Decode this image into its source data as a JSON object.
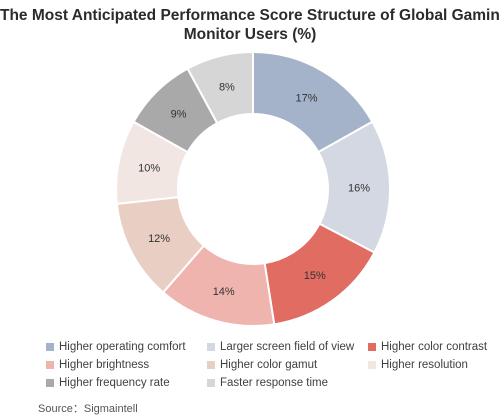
{
  "chart_data": {
    "type": "pie",
    "variant": "donut",
    "title_lines": [
      "The Most Anticipated Performance Score Structure of Global Gaming",
      "Monitor Users (%)"
    ],
    "labels": [
      "Higher operating comfort",
      "Larger screen field of view",
      "Higher color contrast",
      "Higher brightness",
      "Higher color gamut",
      "Higher resolution",
      "Higher frequency rate",
      "Faster response time"
    ],
    "values": [
      17,
      16,
      15,
      14,
      12,
      10,
      9,
      8
    ],
    "value_suffix": "%",
    "colors": [
      "#a5b3ca",
      "#d3d8e2",
      "#e16c62",
      "#efb4ad",
      "#e8cec3",
      "#f2e6e3",
      "#a9a9a9",
      "#d6d6d6"
    ],
    "legend_position": "bottom"
  },
  "source": "Source：Sigmaintell"
}
